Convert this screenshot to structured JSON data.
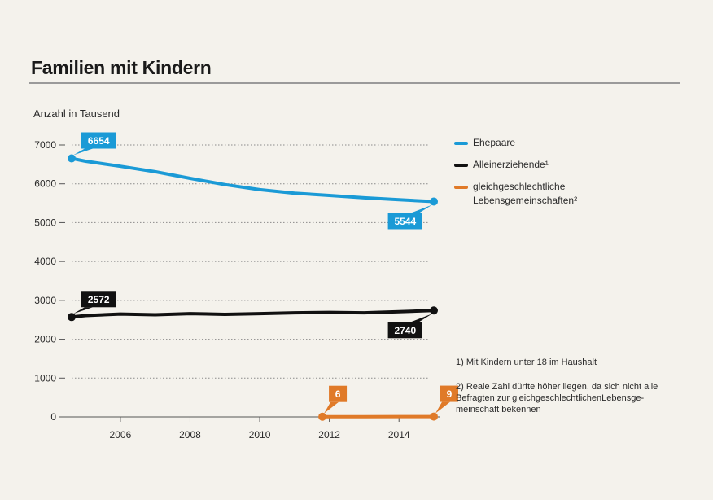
{
  "header": {
    "title": "Familien mit Kindern",
    "unit_label": "Anzahl in Tausend"
  },
  "legend": {
    "items": [
      {
        "label": "Ehepaare",
        "color": "#1a9ad6"
      },
      {
        "label": "Alleinerziehende¹",
        "color": "#111111"
      },
      {
        "label": "gleichgeschlechtliche Lebensgemeinschaften²",
        "color": "#e07a28"
      }
    ]
  },
  "notes": {
    "note1": "1) Mit Kindern unter 18 im Haushalt",
    "note2": "2) Reale Zahl dürfte höher liegen, da sich nicht alle Befragten zur gleichgeschlechtlichenLebensge-meinschaft bekennen"
  },
  "chart_data": {
    "type": "line",
    "title": "Familien mit Kindern",
    "ylabel": "Anzahl in Tausend",
    "xlim": [
      2004.6,
      2015
    ],
    "ylim": [
      0,
      7000
    ],
    "x_ticks": [
      2006,
      2008,
      2010,
      2012,
      2014
    ],
    "y_ticks": [
      0,
      1000,
      2000,
      3000,
      4000,
      5000,
      6000,
      7000
    ],
    "grid": true,
    "legend_position": "right",
    "series": [
      {
        "name": "Ehepaare",
        "color": "#1a9ad6",
        "x": [
          2004.6,
          2005,
          2006,
          2007,
          2008,
          2009,
          2010,
          2011,
          2012,
          2013,
          2014,
          2015
        ],
        "y": [
          6654,
          6580,
          6450,
          6310,
          6140,
          5980,
          5850,
          5760,
          5700,
          5640,
          5590,
          5544
        ],
        "start_label": "6654",
        "end_label": "5544"
      },
      {
        "name": "Alleinerziehende¹",
        "color": "#111111",
        "x": [
          2004.6,
          2005,
          2006,
          2007,
          2008,
          2009,
          2010,
          2011,
          2012,
          2013,
          2014,
          2015
        ],
        "y": [
          2572,
          2610,
          2650,
          2630,
          2660,
          2640,
          2660,
          2680,
          2690,
          2680,
          2710,
          2740
        ],
        "start_label": "2572",
        "end_label": "2740"
      },
      {
        "name": "gleichgeschlechtliche Lebensgemeinschaften²",
        "color": "#e07a28",
        "x": [
          2011.8,
          2013,
          2014,
          2015
        ],
        "y": [
          6,
          7,
          8,
          9
        ],
        "start_label": "6",
        "end_label": "9"
      }
    ]
  }
}
